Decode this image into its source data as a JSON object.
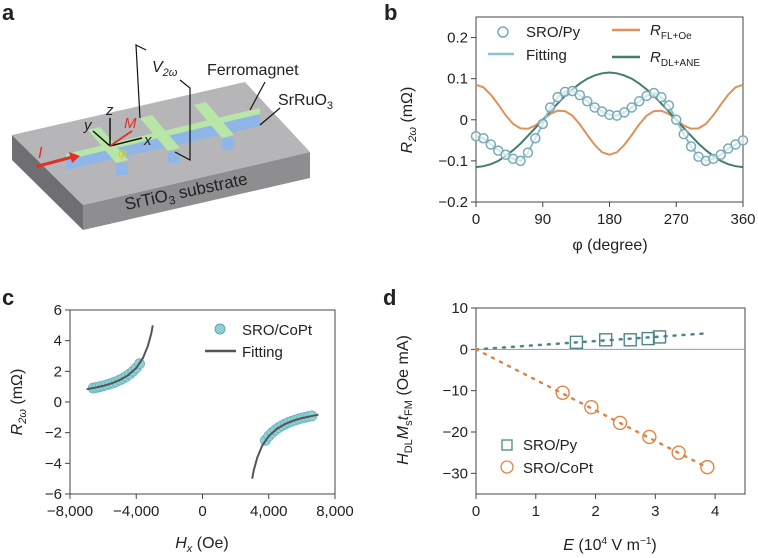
{
  "panel_labels": {
    "a": "a",
    "b": "b",
    "c": "c",
    "d": "d"
  },
  "schematic": {
    "voltage_label": "V",
    "voltage_sub": "2ω",
    "ferromagnet_label": "Ferromagnet",
    "srruo3_label": "SrRuO",
    "srruo3_sub": "3",
    "substrate_label": "SrTiO",
    "substrate_sub": "3",
    "substrate_suffix": " substrate",
    "axis_z": "z",
    "axis_y": "y",
    "axis_x": "x",
    "magnetization": "M",
    "angle": "φ",
    "current": "I",
    "colors": {
      "substrate_top": "#b4b4b6",
      "substrate_side": "#8c8c8e",
      "ferromagnet": "#b7e6a8",
      "srruo3": "#8fb6e6",
      "current": "#e0302a",
      "angle": "#e8e020"
    }
  },
  "chart_data": [
    {
      "panel": "b",
      "type": "line",
      "xlabel": "φ (degree)",
      "ylabel_main": "R",
      "ylabel_sub": "2ω",
      "ylabel_unit": " (mΩ)",
      "xlim": [
        0,
        360
      ],
      "ylim": [
        -0.2,
        0.25
      ],
      "xticks": [
        0,
        90,
        180,
        270,
        360
      ],
      "xtick_labels": [
        "0",
        "90",
        "180",
        "270",
        "360"
      ],
      "yticks": [
        -0.2,
        -0.1,
        0,
        0.1,
        0.2
      ],
      "ytick_labels": [
        "−0.2",
        "−0.1",
        "0",
        "0.1",
        "0.2"
      ],
      "x": [
        0,
        10,
        20,
        30,
        40,
        50,
        60,
        70,
        80,
        90,
        100,
        110,
        120,
        130,
        140,
        150,
        160,
        170,
        180,
        190,
        200,
        210,
        220,
        230,
        240,
        250,
        260,
        270,
        280,
        290,
        300,
        310,
        320,
        330,
        340,
        350,
        360
      ],
      "series": [
        {
          "name": "SRO/Py",
          "kind": "scatter",
          "color": "#7aa9b6",
          "values": [
            -0.04,
            -0.045,
            -0.06,
            -0.075,
            -0.085,
            -0.095,
            -0.1,
            -0.08,
            -0.045,
            -0.01,
            0.03,
            0.055,
            0.068,
            0.07,
            0.06,
            0.045,
            0.03,
            0.02,
            0.012,
            0.01,
            0.018,
            0.03,
            0.045,
            0.058,
            0.065,
            0.055,
            0.035,
            0,
            -0.035,
            -0.065,
            -0.09,
            -0.1,
            -0.095,
            -0.085,
            -0.07,
            -0.06,
            -0.05
          ]
        },
        {
          "name": "Fitting",
          "kind": "line",
          "color": "#86c3cb",
          "values": [
            -0.04,
            -0.045,
            -0.06,
            -0.075,
            -0.085,
            -0.095,
            -0.1,
            -0.08,
            -0.045,
            -0.01,
            0.03,
            0.055,
            0.068,
            0.07,
            0.06,
            0.045,
            0.03,
            0.02,
            0.012,
            0.01,
            0.018,
            0.03,
            0.045,
            0.058,
            0.065,
            0.055,
            0.035,
            0,
            -0.035,
            -0.065,
            -0.09,
            -0.1,
            -0.095,
            -0.085,
            -0.07,
            -0.06,
            -0.05
          ]
        },
        {
          "name": "R",
          "name_sub": "FL+Oe",
          "kind": "line",
          "color": "#e0915a",
          "values": [
            0.085,
            0.079,
            0.061,
            0.037,
            0.011,
            -0.01,
            -0.021,
            -0.022,
            -0.014,
            0,
            0.014,
            0.022,
            0.021,
            0.01,
            -0.011,
            -0.037,
            -0.061,
            -0.079,
            -0.085,
            -0.079,
            -0.061,
            -0.037,
            -0.011,
            0.01,
            0.021,
            0.022,
            0.014,
            0,
            -0.014,
            -0.022,
            -0.021,
            -0.01,
            0.011,
            0.037,
            0.061,
            0.079,
            0.085
          ]
        },
        {
          "name": "R",
          "name_sub": "DL+ANE",
          "kind": "line",
          "color": "#427d6f",
          "values": [
            -0.115,
            -0.113,
            -0.108,
            -0.1,
            -0.088,
            -0.074,
            -0.058,
            -0.039,
            -0.02,
            0,
            0.02,
            0.039,
            0.058,
            0.074,
            0.088,
            0.1,
            0.108,
            0.113,
            0.115,
            0.113,
            0.108,
            0.1,
            0.088,
            0.074,
            0.058,
            0.039,
            0.02,
            0,
            -0.02,
            -0.039,
            -0.058,
            -0.074,
            -0.088,
            -0.1,
            -0.108,
            -0.113,
            -0.115
          ]
        }
      ],
      "legend": "top",
      "grid": false
    },
    {
      "panel": "c",
      "type": "scatter",
      "xlabel_main": "H",
      "xlabel_sub": "x",
      "xlabel_unit": " (Oe)",
      "ylabel_main": "R",
      "ylabel_sub": "2ω",
      "ylabel_unit": " (mΩ)",
      "xlim": [
        -8000,
        8000
      ],
      "ylim": [
        -6,
        6
      ],
      "xticks": [
        -8000,
        -4000,
        0,
        4000,
        8000
      ],
      "xtick_labels": [
        "−8,000",
        "−4,000",
        "0",
        "4,000",
        "8,000"
      ],
      "yticks": [
        -6,
        -4,
        -2,
        0,
        2,
        4,
        6
      ],
      "ytick_labels": [
        "−6",
        "−4",
        "−2",
        "0",
        "2",
        "4",
        "6"
      ],
      "series": [
        {
          "name": "SRO/CoPt",
          "kind": "scatter",
          "color": "#8fd0d6",
          "x": [
            -6600,
            -6400,
            -6200,
            -6000,
            -5800,
            -5600,
            -5400,
            -5200,
            -5000,
            -4800,
            -4600,
            -4400,
            -4200,
            -4000,
            -3800,
            3800,
            4000,
            4200,
            4400,
            4600,
            4800,
            5000,
            5200,
            5400,
            5600,
            5800,
            6000,
            6200,
            6400,
            6600
          ],
          "y": [
            0.91,
            0.95,
            1.0,
            1.05,
            1.11,
            1.18,
            1.25,
            1.33,
            1.43,
            1.54,
            1.67,
            1.82,
            2.0,
            2.22,
            2.5,
            -2.5,
            -2.22,
            -2.0,
            -1.82,
            -1.67,
            -1.54,
            -1.43,
            -1.33,
            -1.25,
            -1.18,
            -1.11,
            -1.05,
            -1.0,
            -0.95,
            -0.91
          ]
        },
        {
          "name": "Fitting",
          "kind": "line",
          "color": "#555555",
          "segments": [
            {
              "x": [
                -7000,
                -6500,
                -6000,
                -5500,
                -5000,
                -4500,
                -4000,
                -3600,
                -3300,
                -3100,
                -3000
              ],
              "y": [
                0.83,
                0.93,
                1.05,
                1.21,
                1.43,
                1.74,
                2.22,
                2.86,
                3.64,
                4.44,
                5.0
              ]
            },
            {
              "x": [
                3000,
                3100,
                3300,
                3600,
                4000,
                4500,
                5000,
                5500,
                6000,
                6500,
                7000
              ],
              "y": [
                -5.0,
                -4.44,
                -3.64,
                -2.86,
                -2.22,
                -1.74,
                -1.43,
                -1.21,
                -1.05,
                -0.93,
                -0.83
              ]
            }
          ]
        }
      ],
      "legend": "top-right",
      "grid": false
    },
    {
      "panel": "d",
      "type": "scatter",
      "xlabel_main": "E",
      "xlabel_unit": " (10",
      "xlabel_exp": "4",
      "xlabel_unit2": " V m",
      "xlabel_exp2": "−1",
      "xlabel_close": ")",
      "ylabel_parts": [
        "H",
        "DL",
        "M",
        "s",
        "t",
        "FM",
        " (Oe mA)"
      ],
      "xlim": [
        0,
        4.5
      ],
      "ylim": [
        -35,
        10
      ],
      "xticks": [
        0,
        1,
        2,
        3,
        4
      ],
      "xtick_labels": [
        "0",
        "1",
        "2",
        "3",
        "4"
      ],
      "yticks": [
        -30,
        -20,
        -10,
        0,
        10
      ],
      "ytick_labels": [
        "−30",
        "−20",
        "−10",
        "0",
        "10"
      ],
      "series": [
        {
          "name": "SRO/Py",
          "kind": "scatter-square",
          "color": "#4f8585",
          "x": [
            1.68,
            2.17,
            2.58,
            2.88,
            3.07
          ],
          "y": [
            1.7,
            2.3,
            2.3,
            2.6,
            3.0
          ],
          "fit_x": [
            0,
            3.8
          ],
          "fit_y": [
            0,
            3.8
          ]
        },
        {
          "name": "SRO/CoPt",
          "kind": "scatter-circle",
          "color": "#e08545",
          "x": [
            1.45,
            1.93,
            2.41,
            2.9,
            3.39,
            3.87
          ],
          "y": [
            -10.5,
            -14.0,
            -17.8,
            -21.2,
            -25.0,
            -28.5
          ],
          "fit_x": [
            0,
            3.87
          ],
          "fit_y": [
            0,
            -28.6
          ]
        }
      ],
      "zero_line": true,
      "legend": "bottom-left",
      "grid": false
    }
  ]
}
